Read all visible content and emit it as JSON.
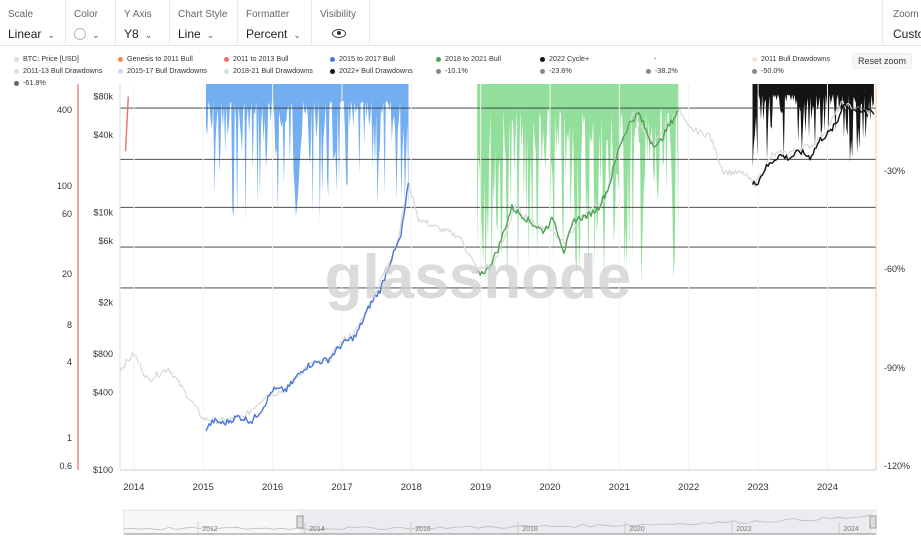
{
  "toolbar": {
    "scale": {
      "label": "Scale",
      "value": "Linear"
    },
    "color": {
      "label": "Color"
    },
    "y_axis": {
      "label": "Y Axis",
      "value": "Y8"
    },
    "chart_style": {
      "label": "Chart Style",
      "value": "Line"
    },
    "formatter": {
      "label": "Formatter",
      "value": "Percent"
    },
    "visibility": {
      "label": "Visibility"
    },
    "zoom": {
      "label": "Zoom",
      "value": "Custo"
    }
  },
  "legend": [
    {
      "label": "BTC: Price [USD]",
      "color": "#dddddd"
    },
    {
      "label": "Genesis to 2011 Bull",
      "color": "#f08a4b"
    },
    {
      "label": "2011 to 2013 Bull",
      "color": "#e8736b"
    },
    {
      "label": "2015 to 2017 Bull",
      "color": "#4a78d8"
    },
    {
      "label": "2018 to 2021 Bull",
      "color": "#4ea352"
    },
    {
      "label": "2022 Cycle+",
      "color": "#111111"
    },
    {
      "label": "-",
      "color": "#ffffff"
    },
    {
      "label": "2011 Bull Drawdowns",
      "color": "#f6e3d5"
    },
    {
      "label": "2011-13 Bull Drawdowns",
      "color": "#f3d6d6"
    },
    {
      "label": "2015-17 Bull Drawdowns",
      "color": "#c9dcf7"
    },
    {
      "label": "2018-21 Bull Drawdowns",
      "color": "#cbeacc"
    },
    {
      "label": "2022+ Bull Drawdowns",
      "color": "#111111"
    },
    {
      "label": "-10.1%",
      "color": "#888888"
    },
    {
      "label": "-23.6%",
      "color": "#888888"
    },
    {
      "label": "-38.2%",
      "color": "#888888"
    },
    {
      "label": "-50.0%",
      "color": "#888888"
    },
    {
      "label": "-61.8%",
      "color": "#666666"
    }
  ],
  "reset_zoom_label": "Reset zoom",
  "watermark": "glassnode",
  "chart_data": {
    "type": "line",
    "x_ticks": [
      "2014",
      "2015",
      "2016",
      "2017",
      "2018",
      "2019",
      "2020",
      "2021",
      "2022",
      "2023",
      "2024"
    ],
    "x_range": [
      2013.8,
      2024.7
    ],
    "left_axis_outer": {
      "scale": "log",
      "ticks": [
        "400",
        "100",
        "60",
        "20",
        "8",
        "4",
        "1",
        "0.6"
      ]
    },
    "left_axis_price": {
      "scale": "log",
      "unit": "USD",
      "ticks": [
        "$80k",
        "$40k",
        "$10k",
        "$6k",
        "$2k",
        "$800",
        "$400",
        "$100"
      ],
      "range": [
        100,
        100000
      ]
    },
    "right_axis": {
      "ticks": [
        "-30%",
        "-60%",
        "-90%",
        "-120%"
      ]
    },
    "fib_levels": [
      {
        "label": "-10.1%",
        "price": 65000
      },
      {
        "label": "-23.6%",
        "price": 26000
      },
      {
        "label": "-38.2%",
        "price": 11000
      },
      {
        "label": "-50.0%",
        "price": 5400
      },
      {
        "label": "-61.8%",
        "price": 2600
      }
    ],
    "series": [
      {
        "name": "BTC: Price [USD]",
        "color": "#d8d8d8",
        "points": [
          [
            2013.8,
            600
          ],
          [
            2014.0,
            800
          ],
          [
            2014.2,
            500
          ],
          [
            2014.5,
            620
          ],
          [
            2014.8,
            360
          ],
          [
            2015.0,
            250
          ],
          [
            2015.3,
            240
          ],
          [
            2015.6,
            260
          ],
          [
            2015.9,
            380
          ],
          [
            2016.2,
            420
          ],
          [
            2016.5,
            650
          ],
          [
            2016.8,
            700
          ],
          [
            2017.0,
            1000
          ],
          [
            2017.2,
            1200
          ],
          [
            2017.5,
            2500
          ],
          [
            2017.8,
            6000
          ],
          [
            2017.96,
            17000
          ],
          [
            2018.1,
            9000
          ],
          [
            2018.4,
            7500
          ],
          [
            2018.7,
            6500
          ],
          [
            2018.95,
            3600
          ],
          [
            2019.2,
            4000
          ],
          [
            2019.5,
            11000
          ],
          [
            2019.8,
            8000
          ],
          [
            2020.0,
            7500
          ],
          [
            2020.2,
            6000
          ],
          [
            2020.5,
            9500
          ],
          [
            2020.8,
            13000
          ],
          [
            2020.95,
            29000
          ],
          [
            2021.2,
            58000
          ],
          [
            2021.5,
            34000
          ],
          [
            2021.85,
            64000
          ],
          [
            2022.0,
            45000
          ],
          [
            2022.3,
            40000
          ],
          [
            2022.5,
            21000
          ],
          [
            2022.8,
            20000
          ],
          [
            2022.95,
            16500
          ],
          [
            2023.2,
            28000
          ],
          [
            2023.5,
            30000
          ],
          [
            2023.8,
            34000
          ],
          [
            2024.0,
            45000
          ],
          [
            2024.2,
            70000
          ],
          [
            2024.5,
            62000
          ],
          [
            2024.65,
            60000
          ]
        ]
      },
      {
        "name": "2015 to 2017 Bull",
        "color": "#4a78d8",
        "points": [
          [
            2015.04,
            210
          ],
          [
            2015.15,
            240
          ],
          [
            2015.3,
            230
          ],
          [
            2015.5,
            260
          ],
          [
            2015.7,
            240
          ],
          [
            2015.85,
            300
          ],
          [
            2016.0,
            420
          ],
          [
            2016.2,
            420
          ],
          [
            2016.45,
            620
          ],
          [
            2016.6,
            680
          ],
          [
            2016.8,
            720
          ],
          [
            2017.0,
            950
          ],
          [
            2017.2,
            1100
          ],
          [
            2017.4,
            1900
          ],
          [
            2017.55,
            2500
          ],
          [
            2017.7,
            4200
          ],
          [
            2017.85,
            6500
          ],
          [
            2017.96,
            17000
          ]
        ]
      },
      {
        "name": "2018 to 2021 Bull",
        "color": "#4ea352",
        "points": [
          [
            2018.95,
            3300
          ],
          [
            2019.1,
            3600
          ],
          [
            2019.25,
            5200
          ],
          [
            2019.45,
            11000
          ],
          [
            2019.6,
            9500
          ],
          [
            2019.75,
            8200
          ],
          [
            2019.9,
            7200
          ],
          [
            2020.05,
            9000
          ],
          [
            2020.2,
            5000
          ],
          [
            2020.35,
            8800
          ],
          [
            2020.55,
            9500
          ],
          [
            2020.7,
            11000
          ],
          [
            2020.85,
            16000
          ],
          [
            2021.0,
            33000
          ],
          [
            2021.15,
            50000
          ],
          [
            2021.28,
            59000
          ],
          [
            2021.45,
            36000
          ],
          [
            2021.55,
            33000
          ],
          [
            2021.7,
            46000
          ],
          [
            2021.85,
            62000
          ]
        ]
      },
      {
        "name": "2022 Cycle+",
        "color": "#111111",
        "points": [
          [
            2022.92,
            16500
          ],
          [
            2023.0,
            17500
          ],
          [
            2023.1,
            22000
          ],
          [
            2023.3,
            28000
          ],
          [
            2023.45,
            26500
          ],
          [
            2023.6,
            30000
          ],
          [
            2023.75,
            27000
          ],
          [
            2023.9,
            37000
          ],
          [
            2024.05,
            43000
          ],
          [
            2024.15,
            52000
          ],
          [
            2024.22,
            70000
          ],
          [
            2024.35,
            64000
          ],
          [
            2024.5,
            60000
          ],
          [
            2024.6,
            66000
          ],
          [
            2024.67,
            58000
          ]
        ]
      },
      {
        "name": "2011 to 2013 Bull",
        "color": "#e8736b",
        "points": [
          [
            2013.88,
            30000
          ],
          [
            2013.92,
            80000
          ]
        ]
      }
    ],
    "drawdown_bands": [
      {
        "name": "2015-17 Bull Drawdowns",
        "color": "#5aa0ee",
        "x_range": [
          2015.04,
          2017.96
        ],
        "depth_price_min": 8000
      },
      {
        "name": "2018-21 Bull Drawdowns",
        "color": "#7fd88a",
        "x_range": [
          2018.95,
          2021.85
        ],
        "depth_price_min": 2500
      },
      {
        "name": "2022+ Bull Drawdowns",
        "color": "#000000",
        "x_range": [
          2022.92,
          2024.67
        ],
        "depth_price_min": 22000
      }
    ],
    "navigator_ticks": [
      "2012",
      "2014",
      "2016",
      "2018",
      "2020",
      "2022",
      "2024"
    ]
  }
}
